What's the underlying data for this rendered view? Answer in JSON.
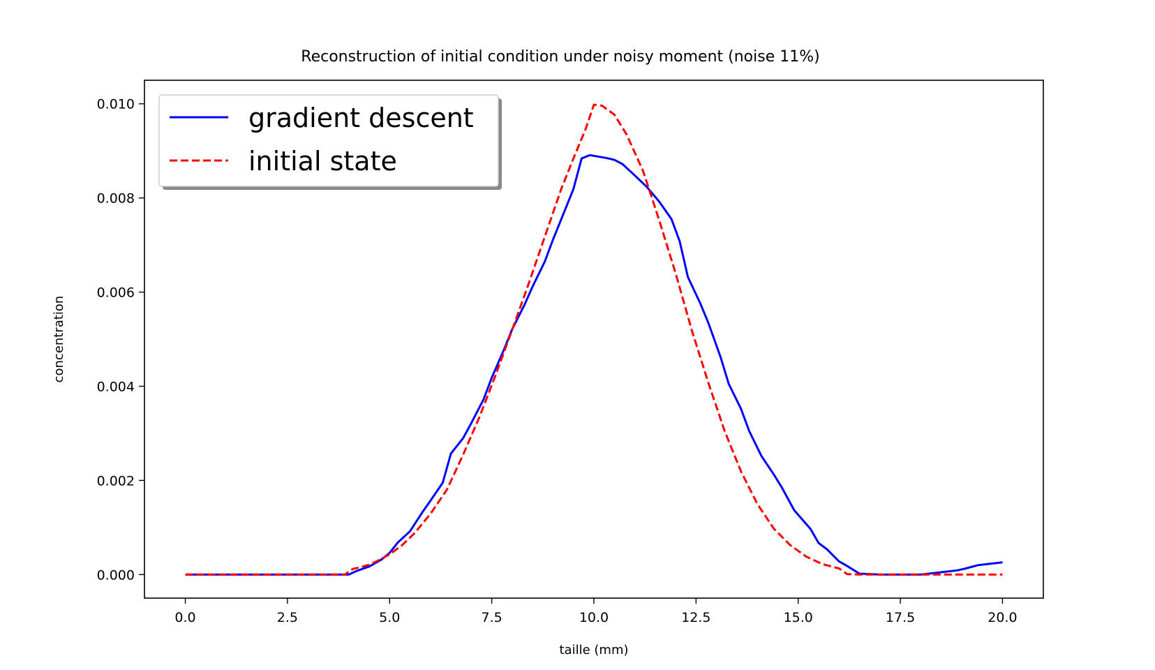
{
  "chart_data": {
    "type": "line",
    "title": "Reconstruction of initial condition under noisy moment (noise 11%)",
    "xlabel": "taille (mm)",
    "ylabel": "concentration",
    "xlim": [
      -1.0,
      21.0
    ],
    "ylim": [
      -0.0005,
      0.0105
    ],
    "xticks": [
      "0.0",
      "2.5",
      "5.0",
      "7.5",
      "10.0",
      "12.5",
      "15.0",
      "17.5",
      "20.0"
    ],
    "yticks": [
      "0.000",
      "0.002",
      "0.004",
      "0.006",
      "0.008",
      "0.010"
    ],
    "grid": false,
    "legend_position": "upper-left",
    "series": [
      {
        "name": "gradient descent",
        "color": "#0000ff",
        "style": "solid",
        "x": [
          0,
          0.5,
          1,
          1.5,
          2,
          2.5,
          3,
          3.5,
          4.0,
          4.2,
          4.5,
          4.8,
          5.0,
          5.2,
          5.5,
          5.8,
          6.0,
          6.3,
          6.5,
          6.8,
          7.0,
          7.3,
          7.5,
          7.8,
          8.0,
          8.3,
          8.5,
          8.8,
          9.0,
          9.3,
          9.5,
          9.7,
          9.9,
          10.1,
          10.3,
          10.5,
          10.7,
          11.0,
          11.3,
          11.6,
          11.9,
          12.1,
          12.3,
          12.6,
          12.8,
          13.1,
          13.3,
          13.6,
          13.8,
          14.1,
          14.4,
          14.6,
          14.9,
          15.1,
          15.3,
          15.5,
          15.7,
          16.0,
          16.2,
          16.5,
          17.0,
          17.5,
          18.0,
          18.3,
          18.6,
          18.9,
          19.1,
          19.4,
          19.7,
          20.0
        ],
        "y": [
          0,
          0,
          0,
          0,
          0,
          0,
          0,
          0,
          0.0,
          8e-05,
          0.00017,
          0.00032,
          0.00046,
          0.00068,
          0.00092,
          0.00132,
          0.00157,
          0.00195,
          0.00257,
          0.0029,
          0.00322,
          0.00372,
          0.00418,
          0.00478,
          0.00521,
          0.00573,
          0.00612,
          0.00665,
          0.00712,
          0.00776,
          0.00819,
          0.00884,
          0.00891,
          0.00888,
          0.00885,
          0.00881,
          0.00872,
          0.00848,
          0.00823,
          0.00792,
          0.00755,
          0.00708,
          0.00632,
          0.00577,
          0.00535,
          0.00462,
          0.00405,
          0.00352,
          0.00305,
          0.00252,
          0.00213,
          0.00185,
          0.00137,
          0.00117,
          0.00097,
          0.00067,
          0.00054,
          0.00028,
          0.00018,
          2e-05,
          0,
          0,
          0,
          3e-05,
          6e-05,
          9e-05,
          0.00013,
          0.0002,
          0.00023,
          0.00026
        ]
      },
      {
        "name": "initial state",
        "color": "#ff0000",
        "style": "dashed",
        "x": [
          0,
          0.5,
          1,
          1.5,
          2,
          2.5,
          3,
          3.5,
          3.9,
          4.1,
          4.3,
          4.5,
          4.7,
          5.0,
          5.3,
          5.6,
          6.0,
          6.4,
          6.8,
          7.2,
          7.6,
          8.0,
          8.4,
          8.8,
          9.2,
          9.5,
          9.8,
          10.0,
          10.2,
          10.5,
          10.8,
          11.2,
          11.6,
          12.0,
          12.4,
          12.8,
          13.2,
          13.6,
          14.0,
          14.4,
          14.8,
          15.2,
          15.6,
          16.0,
          16.2,
          16.5,
          17.0,
          17.5,
          18.0,
          18.5,
          19.0,
          19.5,
          20.0
        ],
        "y": [
          0,
          0,
          0,
          0,
          0,
          0,
          0,
          0,
          0,
          0.00012,
          0.00016,
          0.00021,
          0.00029,
          0.00043,
          0.00062,
          0.00087,
          0.00129,
          0.0018,
          0.00255,
          0.00335,
          0.00425,
          0.0052,
          0.00617,
          0.00718,
          0.00819,
          0.00884,
          0.00947,
          0.00998,
          0.00996,
          0.00977,
          0.00935,
          0.00858,
          0.00752,
          0.0064,
          0.00518,
          0.00408,
          0.00305,
          0.00219,
          0.0015,
          0.00098,
          0.00063,
          0.00038,
          0.00022,
          0.00013,
          1e-05,
          0,
          0,
          0,
          0,
          0,
          0,
          0,
          0
        ]
      }
    ]
  }
}
